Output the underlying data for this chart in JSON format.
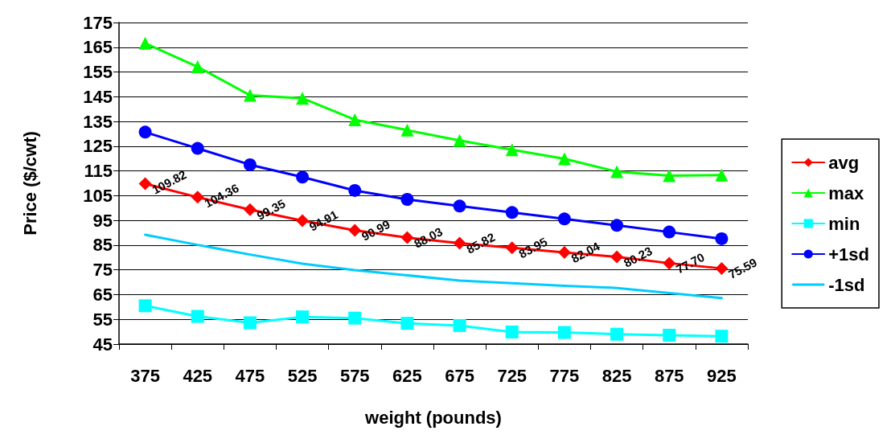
{
  "chart_data": {
    "type": "line",
    "xlabel": "weight (pounds)",
    "ylabel": "Price ($/cwt)",
    "categories": [
      "375",
      "425",
      "475",
      "525",
      "575",
      "625",
      "675",
      "725",
      "775",
      "825",
      "875",
      "925"
    ],
    "series": [
      {
        "name": "avg",
        "color": "#ff0000",
        "marker": "diamond",
        "values": [
          109.82,
          104.36,
          99.35,
          94.91,
          90.99,
          88.03,
          85.82,
          83.95,
          82.04,
          80.23,
          77.7,
          75.59
        ],
        "value_labels": [
          "109.82",
          "104.36",
          "99.35",
          "94.91",
          "90.99",
          "88.03",
          "85.82",
          "83.95",
          "82.04",
          "80.23",
          "77.70",
          "75.59"
        ]
      },
      {
        "name": "max",
        "color": "#00ff00",
        "marker": "triangle",
        "values": [
          166.6,
          157.1,
          145.6,
          144.4,
          135.7,
          131.5,
          127.3,
          123.6,
          119.9,
          114.7,
          113.1,
          113.3
        ]
      },
      {
        "name": "min",
        "color": "#00ffff",
        "marker": "square",
        "values": [
          60.5,
          56.2,
          53.6,
          56.0,
          55.5,
          53.4,
          52.5,
          49.9,
          49.7,
          49.0,
          48.6,
          48.2
        ]
      },
      {
        "name": "+1sd",
        "color": "#0000ff",
        "marker": "circle",
        "values": [
          130.7,
          124.1,
          117.5,
          112.5,
          107.1,
          103.5,
          100.8,
          98.2,
          95.6,
          93.0,
          90.3,
          87.6
        ]
      },
      {
        "name": "-1sd",
        "color": "#00ccff",
        "marker": "none",
        "values": [
          89.2,
          85.1,
          81.2,
          77.5,
          74.9,
          72.8,
          70.7,
          69.6,
          68.6,
          67.7,
          65.6,
          63.6
        ]
      }
    ],
    "ylim": [
      45,
      175
    ],
    "yticks": [
      45,
      55,
      65,
      75,
      85,
      95,
      105,
      115,
      125,
      135,
      145,
      155,
      165,
      175
    ],
    "grid": "y",
    "legend": "right"
  }
}
